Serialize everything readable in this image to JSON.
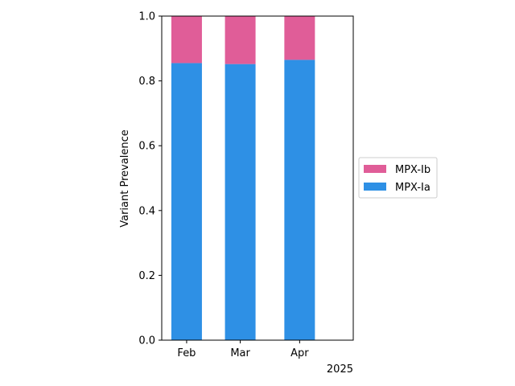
{
  "chart_data": {
    "type": "bar",
    "stacked": true,
    "categories": [
      "Feb",
      "Mar",
      "Apr"
    ],
    "x_dates": [
      "2025-02",
      "2025-03",
      "2025-04"
    ],
    "x_year_label": "2025",
    "series": [
      {
        "name": "MPX-Ia",
        "color": "#2E90E5",
        "values": [
          0.855,
          0.852,
          0.865
        ]
      },
      {
        "name": "MPX-Ib",
        "color": "#E05D98",
        "values": [
          0.145,
          0.148,
          0.135
        ]
      }
    ],
    "ylabel": "Variant Prevalence",
    "xlabel": "",
    "ylim": [
      0,
      1.0
    ],
    "yticks": [
      0.0,
      0.2,
      0.4,
      0.6,
      0.8,
      1.0
    ],
    "ytick_labels": [
      "0.0",
      "0.2",
      "0.4",
      "0.6",
      "0.8",
      "1.0"
    ],
    "grid": false,
    "legend": {
      "placement": "right-outside",
      "order": [
        "MPX-Ib",
        "MPX-Ia"
      ]
    }
  }
}
